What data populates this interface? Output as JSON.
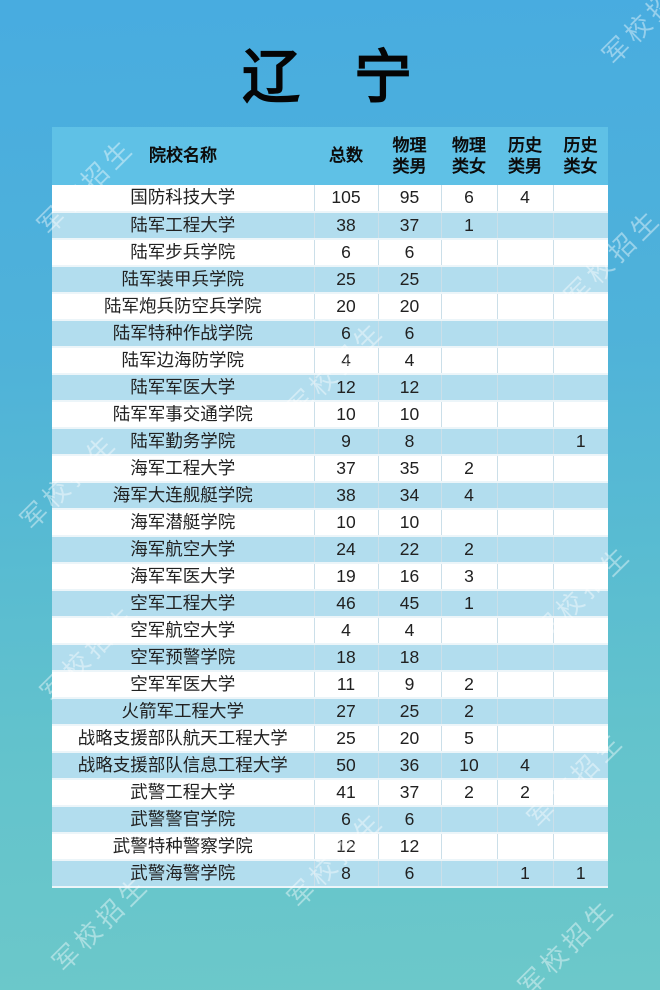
{
  "title": "辽 宁",
  "watermark": {
    "text": "军校招生"
  },
  "table": {
    "columns": [
      {
        "key": "name",
        "label": "院校名称"
      },
      {
        "key": "total",
        "label": "总数"
      },
      {
        "key": "phys_male",
        "label": "物理\n类男"
      },
      {
        "key": "phys_female",
        "label": "物理\n类女"
      },
      {
        "key": "hist_male",
        "label": "历史\n类男"
      },
      {
        "key": "hist_female",
        "label": "历史\n类女"
      }
    ],
    "rows": [
      [
        "国防科技大学",
        "105",
        "95",
        "6",
        "4",
        ""
      ],
      [
        "陆军工程大学",
        "38",
        "37",
        "1",
        "",
        ""
      ],
      [
        "陆军步兵学院",
        "6",
        "6",
        "",
        "",
        ""
      ],
      [
        "陆军装甲兵学院",
        "25",
        "25",
        "",
        "",
        ""
      ],
      [
        "陆军炮兵防空兵学院",
        "20",
        "20",
        "",
        "",
        ""
      ],
      [
        "陆军特种作战学院",
        "6",
        "6",
        "",
        "",
        ""
      ],
      [
        "陆军边海防学院",
        "4",
        "4",
        "",
        "",
        ""
      ],
      [
        "陆军军医大学",
        "12",
        "12",
        "",
        "",
        ""
      ],
      [
        "陆军军事交通学院",
        "10",
        "10",
        "",
        "",
        ""
      ],
      [
        "陆军勤务学院",
        "9",
        "8",
        "",
        "",
        "1"
      ],
      [
        "海军工程大学",
        "37",
        "35",
        "2",
        "",
        ""
      ],
      [
        "海军大连舰艇学院",
        "38",
        "34",
        "4",
        "",
        ""
      ],
      [
        "海军潜艇学院",
        "10",
        "10",
        "",
        "",
        ""
      ],
      [
        "海军航空大学",
        "24",
        "22",
        "2",
        "",
        ""
      ],
      [
        "海军军医大学",
        "19",
        "16",
        "3",
        "",
        ""
      ],
      [
        "空军工程大学",
        "46",
        "45",
        "1",
        "",
        ""
      ],
      [
        "空军航空大学",
        "4",
        "4",
        "",
        "",
        ""
      ],
      [
        "空军预警学院",
        "18",
        "18",
        "",
        "",
        ""
      ],
      [
        "空军军医大学",
        "11",
        "9",
        "2",
        "",
        ""
      ],
      [
        "火箭军工程大学",
        "27",
        "25",
        "2",
        "",
        ""
      ],
      [
        "战略支援部队航天工程大学",
        "25",
        "20",
        "5",
        "",
        ""
      ],
      [
        "战略支援部队信息工程大学",
        "50",
        "36",
        "10",
        "4",
        ""
      ],
      [
        "武警工程大学",
        "41",
        "37",
        "2",
        "2",
        ""
      ],
      [
        "武警警官学院",
        "6",
        "6",
        "",
        "",
        ""
      ],
      [
        "武警特种警察学院",
        "12",
        "12",
        "",
        "",
        ""
      ],
      [
        "武警海警学院",
        "8",
        "6",
        "",
        "1",
        "1"
      ]
    ]
  },
  "colors": {
    "background_top": "#48ace0",
    "background_bottom": "#6cc8ca",
    "header_background": "#5fc1e6",
    "stripe_row_background": "#b2ddee",
    "plain_row_background": "#ffffff",
    "text": "#212121",
    "title_text": "#050505"
  },
  "chart_data": {
    "type": "table",
    "title": "辽宁",
    "columns": [
      "院校名称",
      "总数",
      "物理类男",
      "物理类女",
      "历史类男",
      "历史类女"
    ],
    "rows": [
      [
        "国防科技大学",
        105,
        95,
        6,
        4,
        null
      ],
      [
        "陆军工程大学",
        38,
        37,
        1,
        null,
        null
      ],
      [
        "陆军步兵学院",
        6,
        6,
        null,
        null,
        null
      ],
      [
        "陆军装甲兵学院",
        25,
        25,
        null,
        null,
        null
      ],
      [
        "陆军炮兵防空兵学院",
        20,
        20,
        null,
        null,
        null
      ],
      [
        "陆军特种作战学院",
        6,
        6,
        null,
        null,
        null
      ],
      [
        "陆军边海防学院",
        4,
        4,
        null,
        null,
        null
      ],
      [
        "陆军军医大学",
        12,
        12,
        null,
        null,
        null
      ],
      [
        "陆军军事交通学院",
        10,
        10,
        null,
        null,
        null
      ],
      [
        "陆军勤务学院",
        9,
        8,
        null,
        null,
        1
      ],
      [
        "海军工程大学",
        37,
        35,
        2,
        null,
        null
      ],
      [
        "海军大连舰艇学院",
        38,
        34,
        4,
        null,
        null
      ],
      [
        "海军潜艇学院",
        10,
        10,
        null,
        null,
        null
      ],
      [
        "海军航空大学",
        24,
        22,
        2,
        null,
        null
      ],
      [
        "海军军医大学",
        19,
        16,
        3,
        null,
        null
      ],
      [
        "空军工程大学",
        46,
        45,
        1,
        null,
        null
      ],
      [
        "空军航空大学",
        4,
        4,
        null,
        null,
        null
      ],
      [
        "空军预警学院",
        18,
        18,
        null,
        null,
        null
      ],
      [
        "空军军医大学",
        11,
        9,
        2,
        null,
        null
      ],
      [
        "火箭军工程大学",
        27,
        25,
        2,
        null,
        null
      ],
      [
        "战略支援部队航天工程大学",
        25,
        20,
        5,
        null,
        null
      ],
      [
        "战略支援部队信息工程大学",
        50,
        36,
        10,
        4,
        null
      ],
      [
        "武警工程大学",
        41,
        37,
        2,
        2,
        null
      ],
      [
        "武警警官学院",
        6,
        6,
        null,
        null,
        null
      ],
      [
        "武警特种警察学院",
        12,
        12,
        null,
        null,
        null
      ],
      [
        "武警海警学院",
        8,
        6,
        null,
        1,
        1
      ]
    ]
  }
}
